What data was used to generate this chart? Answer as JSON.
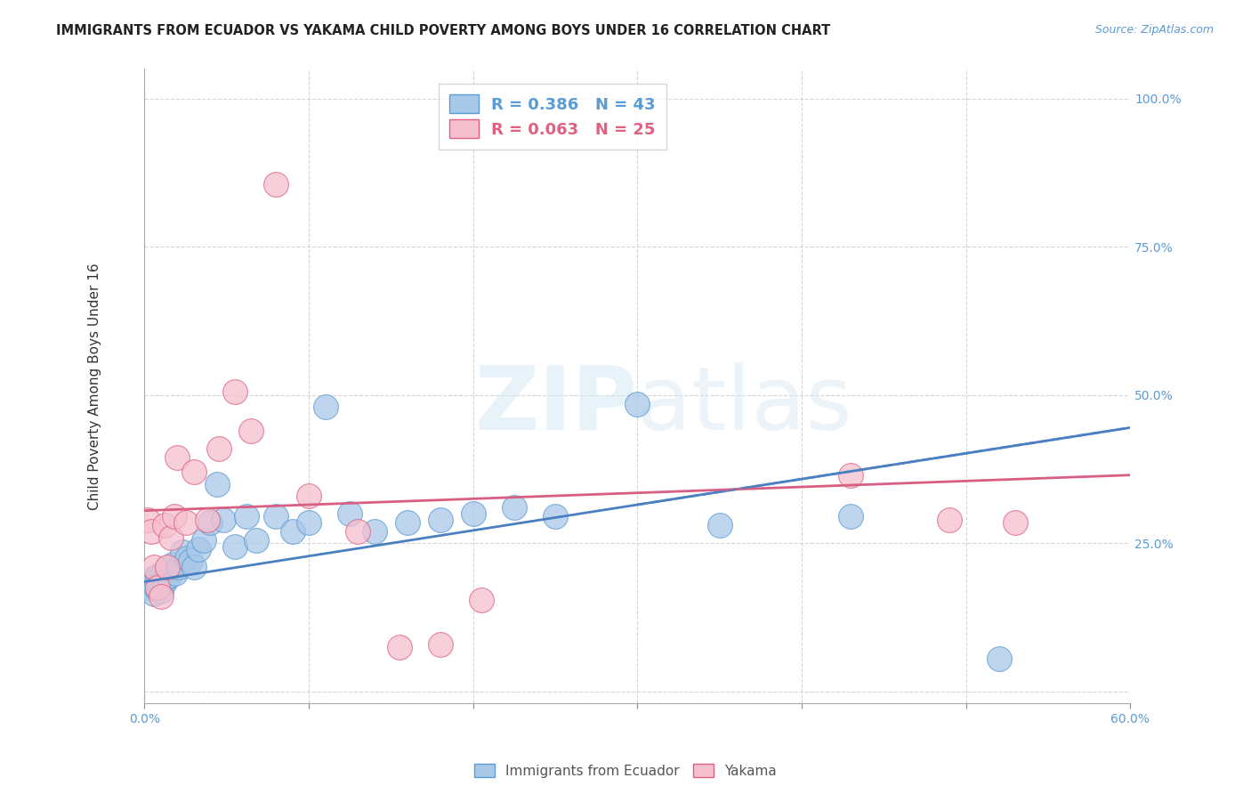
{
  "title": "IMMIGRANTS FROM ECUADOR VS YAKAMA CHILD POVERTY AMONG BOYS UNDER 16 CORRELATION CHART",
  "source": "Source: ZipAtlas.com",
  "ylabel": "Child Poverty Among Boys Under 16",
  "xlim": [
    0.0,
    0.6
  ],
  "ylim": [
    -0.02,
    1.05
  ],
  "x_ticks": [
    0.0,
    0.1,
    0.2,
    0.3,
    0.4,
    0.5,
    0.6
  ],
  "x_tick_labels": [
    "0.0%",
    "",
    "",
    "",
    "",
    "",
    "60.0%"
  ],
  "y_ticks": [
    0.0,
    0.25,
    0.5,
    0.75,
    1.0
  ],
  "y_tick_labels": [
    "",
    "25.0%",
    "50.0%",
    "75.0%",
    "100.0%"
  ],
  "legend1_r": "0.386",
  "legend1_n": "43",
  "legend2_r": "0.063",
  "legend2_n": "25",
  "blue_fill": "#a8c8e8",
  "blue_edge": "#5b9bd5",
  "pink_fill": "#f5bfce",
  "pink_edge": "#e06080",
  "blue_line_color": "#4a7fc1",
  "pink_line_color": "#d95f82",
  "watermark_color": "#d5e8f5",
  "grid_color": "#cccccc",
  "background_color": "#ffffff",
  "title_color": "#222222",
  "tick_color": "#5b9bd5",
  "ylabel_color": "#333333",
  "source_color": "#5b9bd5",
  "title_fontsize": 10.5,
  "axis_label_fontsize": 11,
  "tick_fontsize": 10,
  "legend_fontsize": 13,
  "blue_points_x": [
    0.002,
    0.004,
    0.005,
    0.006,
    0.007,
    0.008,
    0.009,
    0.01,
    0.011,
    0.012,
    0.013,
    0.014,
    0.015,
    0.017,
    0.019,
    0.021,
    0.023,
    0.026,
    0.028,
    0.03,
    0.033,
    0.036,
    0.04,
    0.044,
    0.048,
    0.055,
    0.062,
    0.068,
    0.08,
    0.09,
    0.1,
    0.11,
    0.125,
    0.14,
    0.16,
    0.18,
    0.2,
    0.225,
    0.25,
    0.3,
    0.35,
    0.43,
    0.52
  ],
  "blue_points_y": [
    0.175,
    0.185,
    0.19,
    0.165,
    0.175,
    0.195,
    0.18,
    0.17,
    0.2,
    0.185,
    0.19,
    0.205,
    0.195,
    0.215,
    0.2,
    0.21,
    0.235,
    0.225,
    0.22,
    0.21,
    0.24,
    0.255,
    0.285,
    0.35,
    0.29,
    0.245,
    0.295,
    0.255,
    0.295,
    0.27,
    0.285,
    0.48,
    0.3,
    0.27,
    0.285,
    0.29,
    0.3,
    0.31,
    0.295,
    0.485,
    0.28,
    0.295,
    0.055
  ],
  "pink_points_x": [
    0.002,
    0.004,
    0.006,
    0.008,
    0.01,
    0.012,
    0.014,
    0.016,
    0.018,
    0.02,
    0.025,
    0.03,
    0.038,
    0.045,
    0.055,
    0.065,
    0.08,
    0.1,
    0.13,
    0.155,
    0.18,
    0.205,
    0.43,
    0.49,
    0.53
  ],
  "pink_points_y": [
    0.29,
    0.27,
    0.21,
    0.175,
    0.16,
    0.28,
    0.21,
    0.26,
    0.295,
    0.395,
    0.285,
    0.37,
    0.29,
    0.41,
    0.505,
    0.44,
    0.855,
    0.33,
    0.27,
    0.075,
    0.08,
    0.155,
    0.365,
    0.29,
    0.285
  ],
  "blue_trend_x0": 0.0,
  "blue_trend_y0": 0.185,
  "blue_trend_x1": 0.6,
  "blue_trend_y1": 0.445,
  "pink_trend_x0": 0.0,
  "pink_trend_y0": 0.305,
  "pink_trend_x1": 0.6,
  "pink_trend_y1": 0.365
}
